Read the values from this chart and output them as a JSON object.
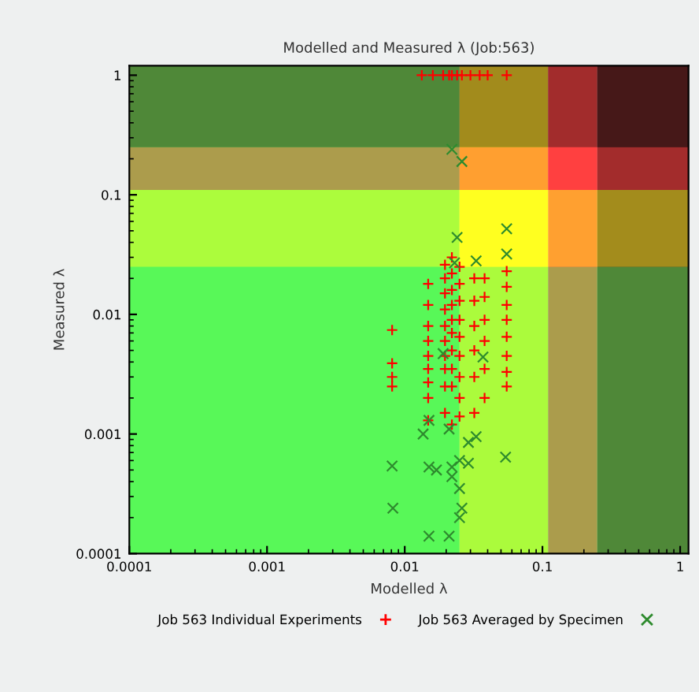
{
  "chart_data": {
    "type": "scatter",
    "title": "Modelled and Measured λ (Job:563)",
    "xlabel": "Modelled λ",
    "ylabel": "Measured λ",
    "log": "xy",
    "xlim": [
      0.0001,
      1.15
    ],
    "ylim": [
      0.0001,
      1.2
    ],
    "xticks": [
      0.0001,
      0.001,
      0.01,
      0.1,
      1
    ],
    "yticks": [
      0.0001,
      0.001,
      0.01,
      0.1,
      1
    ],
    "grid": false,
    "legend": "bottom",
    "bands": [
      {
        "axis": "x",
        "from": 0.0001,
        "to": 0.025,
        "color": "#58f858"
      },
      {
        "axis": "x",
        "from": 0.025,
        "to": 0.11,
        "color": "#ffff20"
      },
      {
        "axis": "x",
        "from": 0.11,
        "to": 0.25,
        "color": "#ff4040"
      },
      {
        "axis": "x",
        "from": 0.25,
        "to": 1.15,
        "color": "#461818"
      },
      {
        "axis": "y",
        "from": 0.0001,
        "to": 0.025,
        "color": "#58f858"
      },
      {
        "axis": "y",
        "from": 0.025,
        "to": 0.11,
        "color": "#ffff20"
      },
      {
        "axis": "y",
        "from": 0.11,
        "to": 0.25,
        "color": "#ff4040"
      },
      {
        "axis": "y",
        "from": 0.25,
        "to": 1.2,
        "color": "#461818"
      }
    ],
    "series": [
      {
        "name": "Job 563 Individual Experiments",
        "color": "#ff0000",
        "marker": "plus",
        "x": [
          0.0133,
          0.016,
          0.019,
          0.021,
          0.022,
          0.024,
          0.026,
          0.03,
          0.035,
          0.04,
          0.055,
          0.0081,
          0.0081,
          0.0081,
          0.0081,
          0.0148,
          0.0148,
          0.0148,
          0.0148,
          0.0148,
          0.0148,
          0.0148,
          0.0148,
          0.0148,
          0.0196,
          0.0196,
          0.0196,
          0.0196,
          0.0196,
          0.0196,
          0.0196,
          0.0196,
          0.0196,
          0.0196,
          0.022,
          0.022,
          0.022,
          0.022,
          0.022,
          0.022,
          0.022,
          0.022,
          0.022,
          0.022,
          0.025,
          0.025,
          0.025,
          0.025,
          0.025,
          0.025,
          0.025,
          0.025,
          0.025,
          0.032,
          0.032,
          0.032,
          0.032,
          0.032,
          0.032,
          0.038,
          0.038,
          0.038,
          0.038,
          0.038,
          0.038,
          0.055,
          0.055,
          0.055,
          0.055,
          0.055,
          0.055,
          0.055,
          0.055
        ],
        "values": [
          1,
          1,
          1,
          1,
          1,
          1,
          1,
          1,
          1,
          1,
          1,
          0.0074,
          0.0039,
          0.003,
          0.0025,
          0.018,
          0.012,
          0.008,
          0.006,
          0.0045,
          0.0035,
          0.0027,
          0.002,
          0.0013,
          0.026,
          0.02,
          0.015,
          0.011,
          0.008,
          0.006,
          0.0045,
          0.0035,
          0.0025,
          0.0015,
          0.03,
          0.022,
          0.016,
          0.012,
          0.009,
          0.007,
          0.005,
          0.0035,
          0.0025,
          0.0012,
          0.025,
          0.018,
          0.013,
          0.009,
          0.0065,
          0.0045,
          0.003,
          0.002,
          0.0014,
          0.02,
          0.013,
          0.008,
          0.005,
          0.003,
          0.0015,
          0.02,
          0.014,
          0.009,
          0.006,
          0.0035,
          0.002,
          0.023,
          0.017,
          0.012,
          0.009,
          0.0065,
          0.0045,
          0.0033,
          0.0025
        ]
      },
      {
        "name": "Job 563 Averaged by Specimen",
        "color": "#2e8b2e",
        "marker": "cross",
        "x": [
          0.022,
          0.026,
          0.024,
          0.055,
          0.055,
          0.033,
          0.023,
          0.037,
          0.019,
          0.0081,
          0.015,
          0.017,
          0.022,
          0.022,
          0.025,
          0.029,
          0.033,
          0.029,
          0.054,
          0.025,
          0.0082,
          0.026,
          0.025,
          0.015,
          0.021,
          0.0136,
          0.015,
          0.021
        ],
        "values": [
          0.24,
          0.19,
          0.044,
          0.052,
          0.032,
          0.028,
          0.027,
          0.0044,
          0.0047,
          0.00054,
          0.00053,
          0.0005,
          0.00053,
          0.00044,
          0.0006,
          0.00085,
          0.00095,
          0.00057,
          0.00064,
          0.00035,
          0.00024,
          0.00024,
          0.0002,
          0.00014,
          0.00014,
          0.001,
          0.0013,
          0.0011
        ]
      }
    ]
  }
}
